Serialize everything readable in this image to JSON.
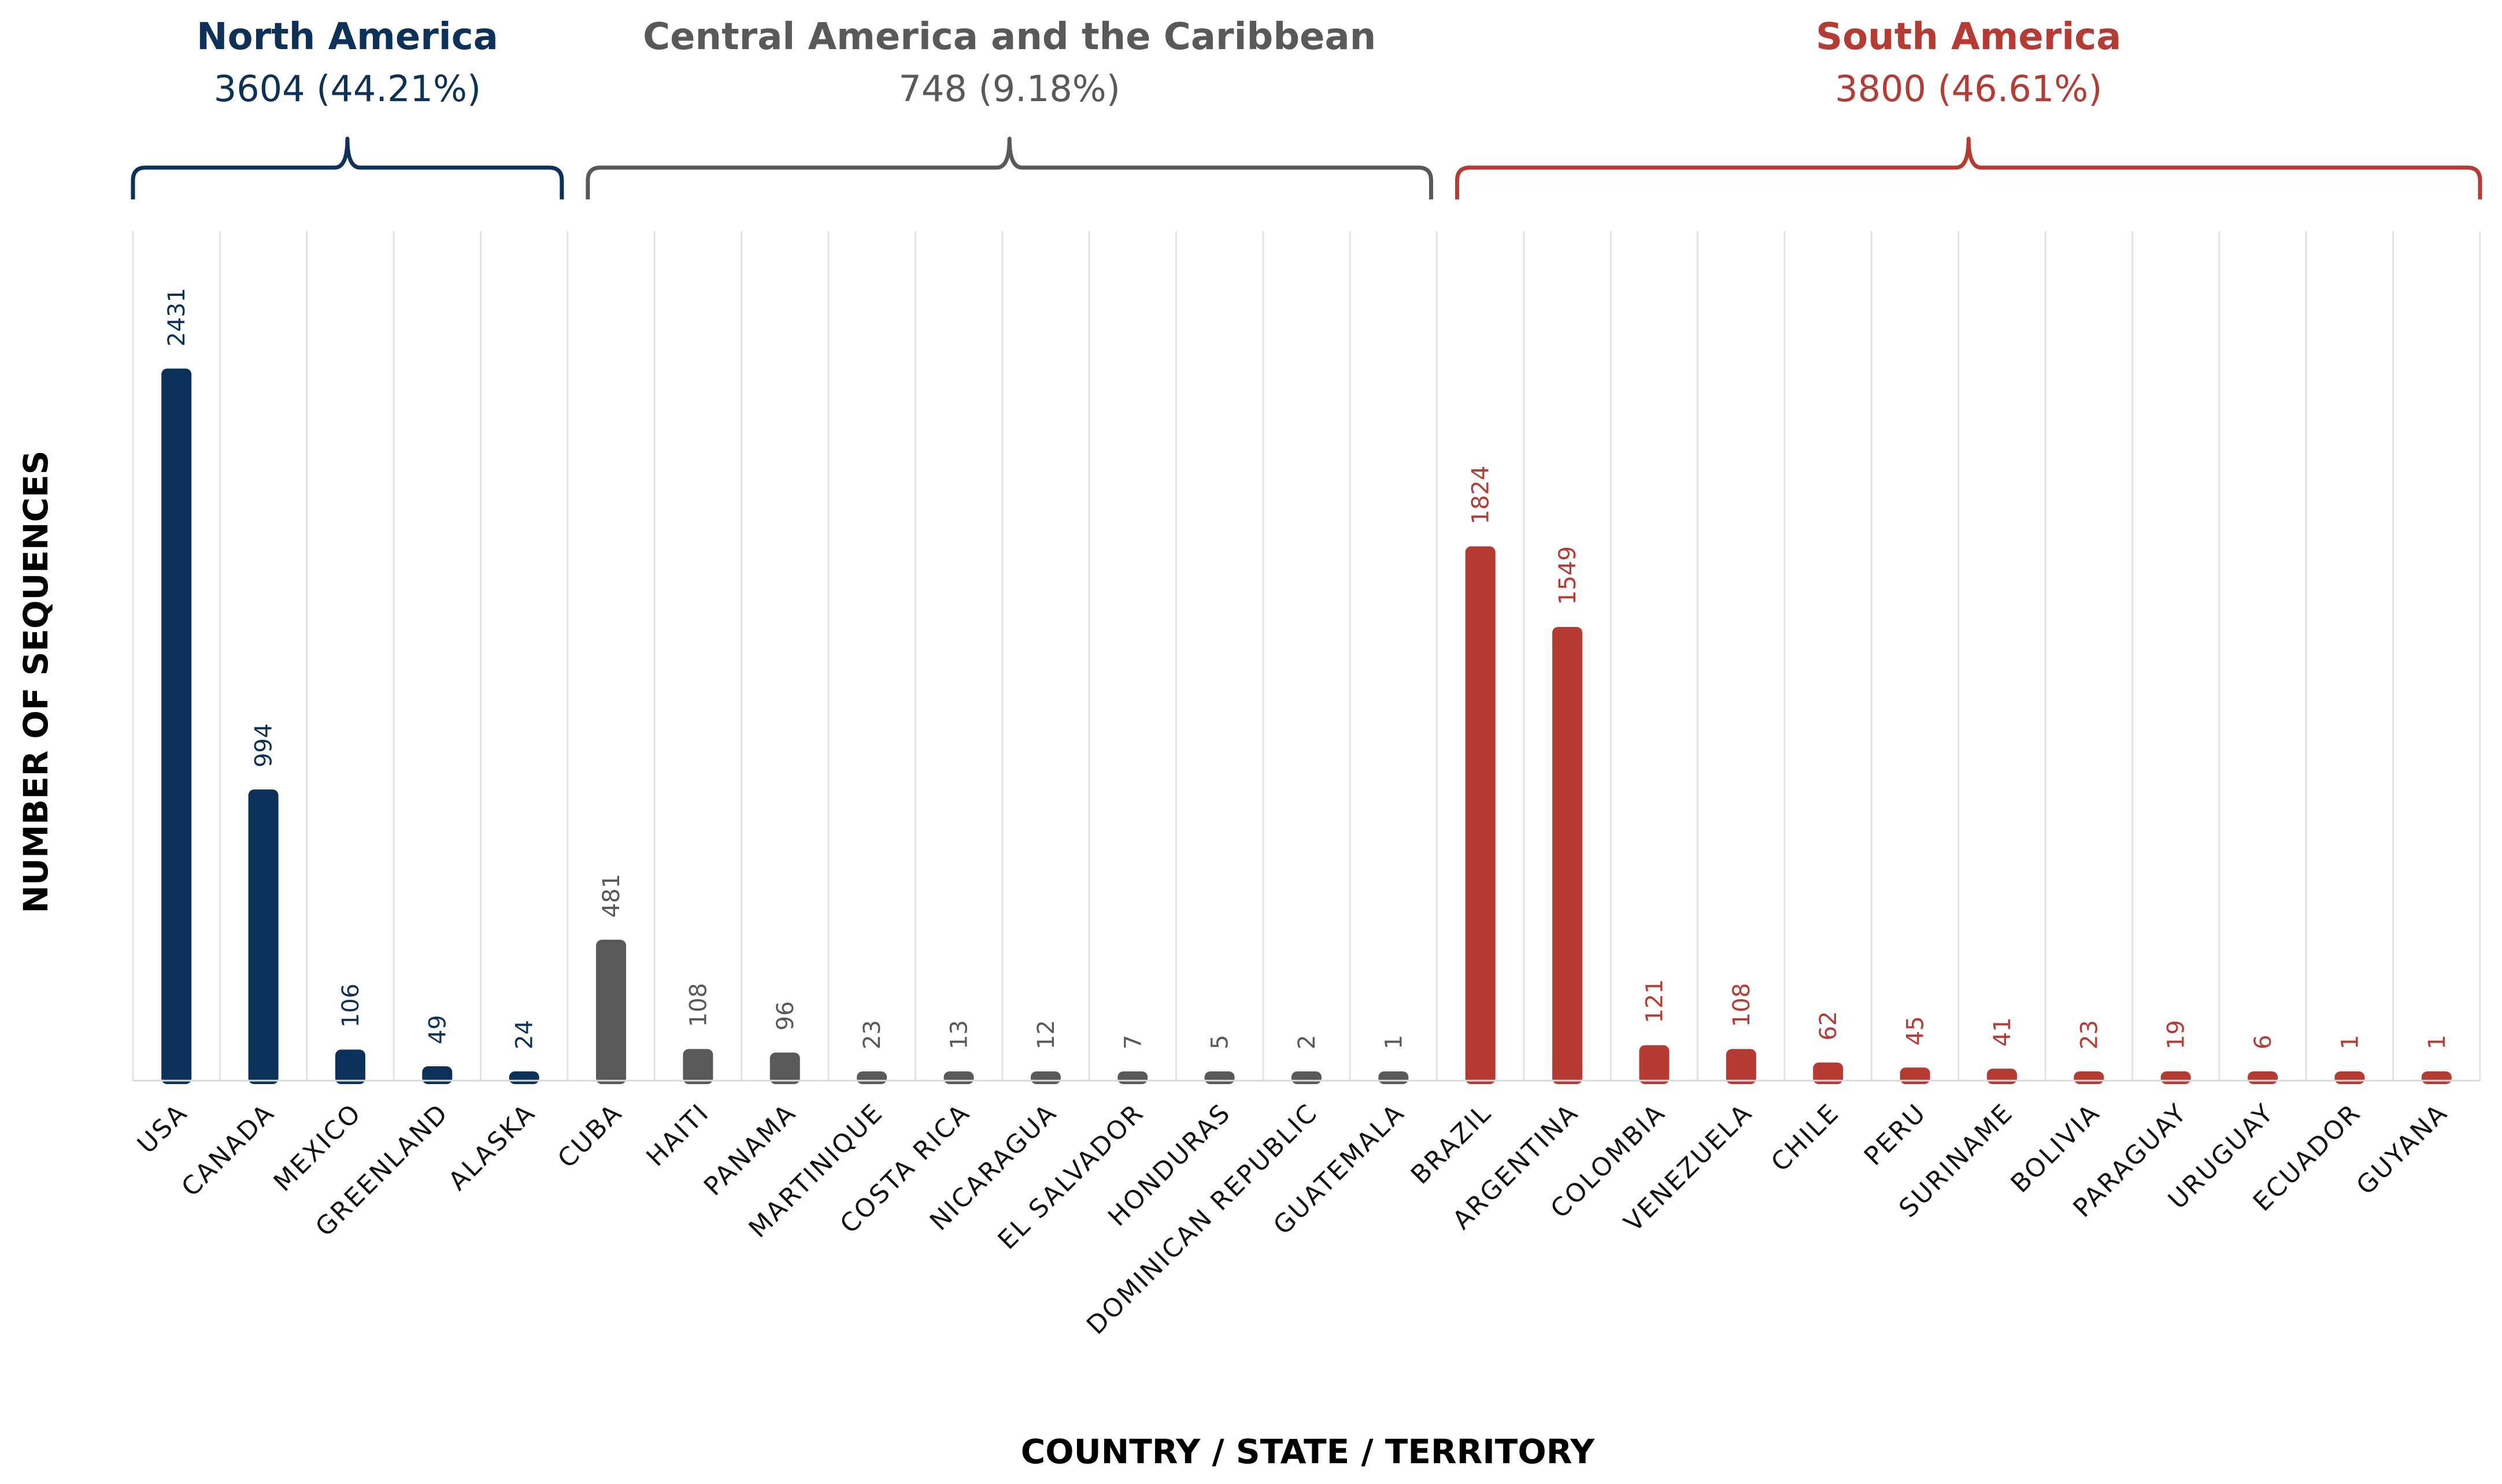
{
  "chart_data": {
    "type": "bar",
    "xlabel": "COUNTRY / STATE / TERRITORY",
    "ylabel": "NUMBER OF SEQUENCES",
    "ylim": [
      0,
      2900
    ],
    "grid": "vertical",
    "groups": [
      {
        "name": "North America",
        "summary": "3604 (44.21%)",
        "total": 3604,
        "percent": 44.21,
        "color": "#0d3259",
        "categories": [
          "USA",
          "CANADA",
          "MEXICO",
          "GREENLAND",
          "ALASKA"
        ],
        "values": [
          2431,
          994,
          106,
          49,
          24
        ]
      },
      {
        "name": "Central America and the Caribbean",
        "summary": "748 (9.18%)",
        "total": 748,
        "percent": 9.18,
        "color": "#595959",
        "categories": [
          "CUBA",
          "HAITI",
          "PANAMA",
          "MARTINIQUE",
          "COSTA RICA",
          "NICARAGUA",
          "EL SALVADOR",
          "HONDURAS",
          "DOMINICAN REPUBLIC",
          "GUATEMALA"
        ],
        "values": [
          481,
          108,
          96,
          23,
          13,
          12,
          7,
          5,
          2,
          1
        ]
      },
      {
        "name": "South America",
        "summary": "3800 (46.61%)",
        "total": 3800,
        "percent": 46.61,
        "color": "#b63b33",
        "categories": [
          "BRAZIL",
          "ARGENTINA",
          "COLOMBIA",
          "VENEZUELA",
          "CHILE",
          "PERU",
          "SURINAME",
          "BOLIVIA",
          "PARAGUAY",
          "URUGUAY",
          "ECUADOR",
          "GUYANA"
        ],
        "values": [
          1824,
          1549,
          121,
          108,
          62,
          45,
          41,
          23,
          19,
          6,
          1,
          1
        ]
      }
    ]
  }
}
